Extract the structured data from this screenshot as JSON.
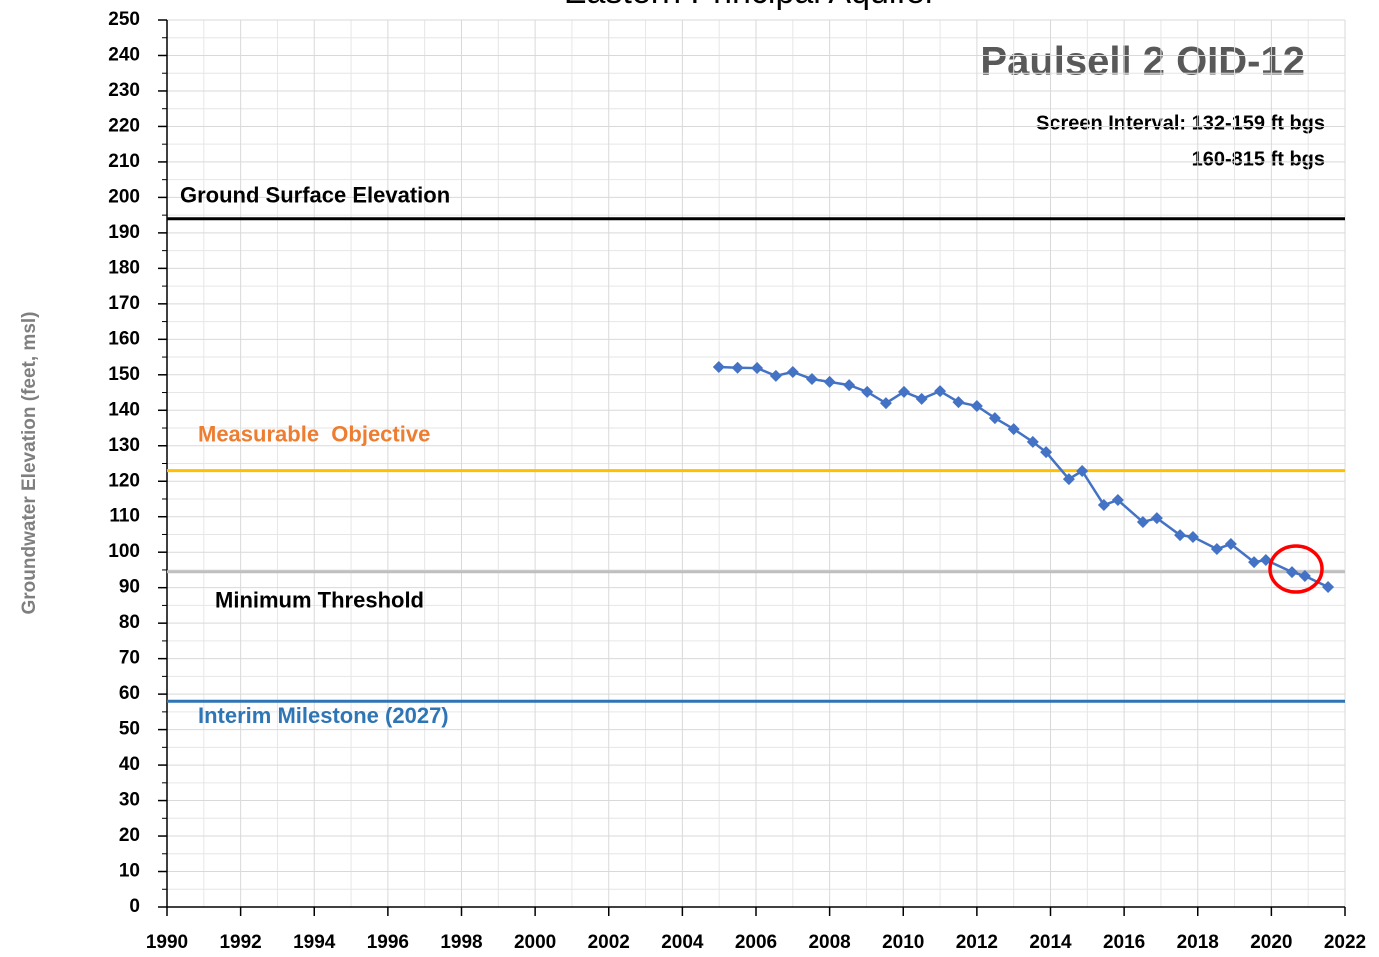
{
  "chart_data": {
    "type": "line",
    "title": "Eastern Principal Aquifer",
    "ylabel": "Groundwater Elevation (feet, msl)",
    "annotations": [
      "Paulsell 2 OID-12",
      "Screen Interval: 132-159 ft bgs",
      "160-815 ft bgs"
    ],
    "x": [
      2004.99,
      2005.5,
      2006.03,
      2006.54,
      2007.0,
      2007.52,
      2008.0,
      2008.53,
      2009.02,
      2009.53,
      2010.02,
      2010.5,
      2011.0,
      2011.5,
      2012.0,
      2012.49,
      2013.0,
      2013.52,
      2013.88,
      2014.5,
      2014.86,
      2015.45,
      2015.83,
      2016.51,
      2016.89,
      2017.52,
      2017.87,
      2018.52,
      2018.9,
      2019.53,
      2019.85,
      2020.56,
      2020.91,
      2021.54
    ],
    "series": [
      {
        "color": "#4472c4",
        "values": [
          152.2,
          152,
          151.9,
          149.7,
          150.8,
          148.8,
          148,
          147.1,
          145.2,
          142,
          145.2,
          143.2,
          145.4,
          142.3,
          141.2,
          137.8,
          134.7,
          131.1,
          128.2,
          120.6,
          122.9,
          113.3,
          114.7,
          108.5,
          109.6,
          104.8,
          104.3,
          100.9,
          102.3,
          97.2,
          97.8,
          94.4,
          93.3,
          90.2
        ]
      }
    ],
    "reference_lines": [
      {
        "label": "Ground Surface Elevation",
        "value": 194,
        "color": "#000000",
        "label_color": "#000000"
      },
      {
        "label": "Measurable  Objective",
        "value": 123,
        "color": "#ffc000",
        "label_color": "#ed7d31"
      },
      {
        "label": "Minimum Threshold",
        "value": 94.5,
        "color": "#bfbfbf",
        "label_color": "#000000"
      },
      {
        "label": "Interim Milestone (2027)",
        "value": 58,
        "color": "#2e75b6",
        "label_color": "#2e75b6"
      }
    ],
    "xlim": [
      1990,
      2022
    ],
    "xticks": [
      1990,
      1992,
      1994,
      1996,
      1998,
      2000,
      2002,
      2004,
      2006,
      2008,
      2010,
      2012,
      2014,
      2016,
      2018,
      2020,
      2022
    ],
    "ylim": [
      0,
      250
    ],
    "yticks": [
      0,
      10,
      20,
      30,
      40,
      50,
      60,
      70,
      80,
      90,
      100,
      110,
      120,
      130,
      140,
      150,
      160,
      170,
      180,
      190,
      200,
      210,
      220,
      230,
      240,
      250
    ],
    "grid": true
  }
}
